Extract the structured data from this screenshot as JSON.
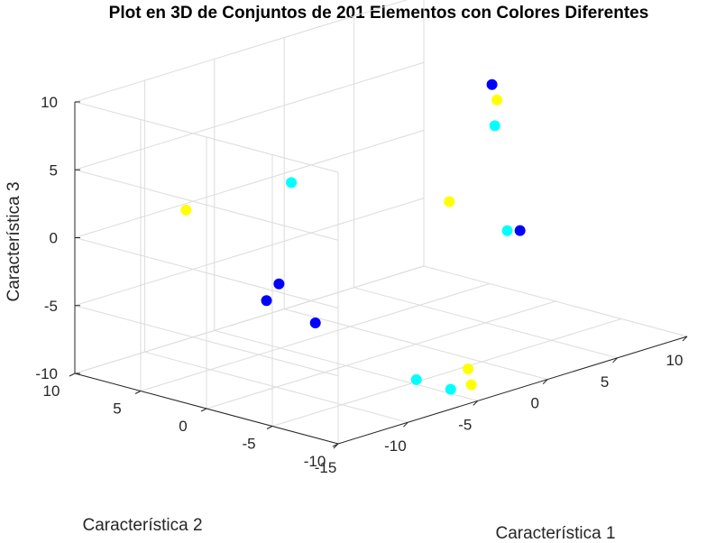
{
  "chart_data": {
    "type": "scatter3d",
    "title": "Plot en 3D de Conjuntos de 201 Elementos con Colores Diferentes",
    "xlabel": "Característica 1",
    "ylabel": "Característica 2",
    "zlabel": "Característica 3",
    "xlim": [
      -15,
      10
    ],
    "ylim": [
      -10,
      10
    ],
    "zlim": [
      -10,
      10
    ],
    "xticks": [
      "-15",
      "-10",
      "-5",
      "0",
      "5",
      "10"
    ],
    "yticks": [
      "-10",
      "-5",
      "0",
      "5",
      "10"
    ],
    "zticks": [
      "-10",
      "-5",
      "0",
      "5",
      "10"
    ],
    "grid": true,
    "series": [
      {
        "color": "#0000ff",
        "points": [
          {
            "x": 6.3,
            "y": 0.9,
            "z": 6.9
          },
          {
            "x": -12.4,
            "y": -1.8,
            "z": -2.4
          },
          {
            "x": 6.8,
            "y": -0.7,
            "z": -3.6
          },
          {
            "x": -12.2,
            "y": -5.3,
            "z": -3.2
          },
          {
            "x": -3.3,
            "y": 6.9,
            "z": -6.3
          }
        ]
      },
      {
        "color": "#00ffff",
        "points": [
          {
            "x": 2.3,
            "y": 11.9,
            "z": -1.9
          },
          {
            "x": 4.0,
            "y": -2.7,
            "z": -2.2
          },
          {
            "x": 8.2,
            "y": 2.7,
            "z": 2.8
          },
          {
            "x": -4.3,
            "y": -7.2,
            "z": -10.1
          },
          {
            "x": -6.1,
            "y": -6.5,
            "z": -9.0
          }
        ]
      },
      {
        "color": "#ffff00",
        "points": [
          {
            "x": -10.9,
            "y": 5.9,
            "z": 1.8
          },
          {
            "x": 9.3,
            "y": 3.7,
            "z": 4.1
          },
          {
            "x": 2.3,
            "y": -0.1,
            "z": -0.2
          },
          {
            "x": -0.5,
            "y": -4.5,
            "z": -10.5
          },
          {
            "x": -3.2,
            "y": -7.6,
            "z": -10.0
          }
        ]
      }
    ]
  }
}
